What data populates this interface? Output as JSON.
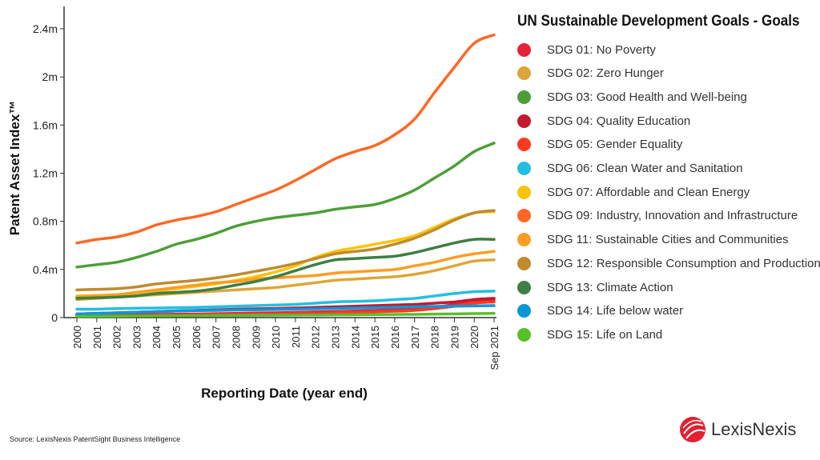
{
  "chart_data": {
    "type": "line",
    "xlabel": "Reporting Date (year end)",
    "ylabel": "Patent Asset Index™",
    "ylim": [
      0,
      2400000
    ],
    "yticks": [
      "0",
      "0.4m",
      "0.8m",
      "1.2m",
      "1.6m",
      "2m",
      "2.4m"
    ],
    "x": [
      "2000",
      "2001",
      "2002",
      "2003",
      "2004",
      "2005",
      "2006",
      "2007",
      "2008",
      "2009",
      "2010",
      "2011",
      "2012",
      "2013",
      "2014",
      "2015",
      "2016",
      "2017",
      "2018",
      "2019",
      "2020",
      "Sep 2021"
    ],
    "legend_title": "UN Sustainable Development Goals - Goals",
    "legend_position": "right",
    "grid": false,
    "series": [
      {
        "name": "SDG 01: No Poverty",
        "color": "#e5243b",
        "values": [
          0.02,
          0.02,
          0.022,
          0.024,
          0.026,
          0.028,
          0.03,
          0.032,
          0.035,
          0.038,
          0.04,
          0.043,
          0.047,
          0.05,
          0.055,
          0.06,
          0.065,
          0.07,
          0.085,
          0.11,
          0.14,
          0.15
        ]
      },
      {
        "name": "SDG 02: Zero Hunger",
        "color": "#dda63a",
        "values": [
          0.15,
          0.16,
          0.17,
          0.18,
          0.19,
          0.2,
          0.21,
          0.22,
          0.23,
          0.24,
          0.25,
          0.27,
          0.29,
          0.31,
          0.32,
          0.33,
          0.34,
          0.36,
          0.39,
          0.43,
          0.47,
          0.48
        ]
      },
      {
        "name": "SDG 03: Good Health and Well-being",
        "color": "#4c9f38",
        "values": [
          0.42,
          0.44,
          0.46,
          0.5,
          0.55,
          0.61,
          0.65,
          0.7,
          0.76,
          0.8,
          0.83,
          0.85,
          0.87,
          0.9,
          0.92,
          0.94,
          0.99,
          1.06,
          1.16,
          1.26,
          1.38,
          1.45
        ]
      },
      {
        "name": "SDG 04: Quality Education",
        "color": "#c5192d",
        "values": [
          0.03,
          0.035,
          0.04,
          0.045,
          0.05,
          0.055,
          0.06,
          0.065,
          0.07,
          0.073,
          0.076,
          0.08,
          0.085,
          0.09,
          0.095,
          0.1,
          0.105,
          0.11,
          0.12,
          0.13,
          0.15,
          0.16
        ]
      },
      {
        "name": "SDG 05: Gender Equality",
        "color": "#ff3a21",
        "values": [
          0.01,
          0.012,
          0.014,
          0.016,
          0.018,
          0.02,
          0.022,
          0.024,
          0.026,
          0.028,
          0.03,
          0.033,
          0.036,
          0.04,
          0.044,
          0.048,
          0.053,
          0.06,
          0.075,
          0.095,
          0.12,
          0.13
        ]
      },
      {
        "name": "SDG 06: Clean Water and Sanitation",
        "color": "#26bde2",
        "values": [
          0.07,
          0.07,
          0.075,
          0.078,
          0.08,
          0.082,
          0.085,
          0.09,
          0.095,
          0.1,
          0.105,
          0.11,
          0.12,
          0.13,
          0.135,
          0.14,
          0.15,
          0.16,
          0.18,
          0.2,
          0.215,
          0.22
        ]
      },
      {
        "name": "SDG 07: Affordable and Clean Energy",
        "color": "#fcc30b",
        "values": [
          0.18,
          0.185,
          0.19,
          0.2,
          0.22,
          0.24,
          0.26,
          0.28,
          0.31,
          0.34,
          0.38,
          0.43,
          0.5,
          0.55,
          0.58,
          0.61,
          0.64,
          0.68,
          0.75,
          0.82,
          0.87,
          0.88
        ]
      },
      {
        "name": "SDG 09: Industry, Innovation and Infrastructure",
        "color": "#fd6925",
        "values": [
          0.62,
          0.65,
          0.67,
          0.71,
          0.77,
          0.81,
          0.84,
          0.88,
          0.94,
          1.0,
          1.06,
          1.14,
          1.23,
          1.32,
          1.38,
          1.43,
          1.52,
          1.65,
          1.87,
          2.08,
          2.28,
          2.35
        ]
      },
      {
        "name": "SDG 11: Sustainable Cities and Communities",
        "color": "#fd9d24",
        "values": [
          0.17,
          0.18,
          0.19,
          0.21,
          0.23,
          0.25,
          0.27,
          0.29,
          0.3,
          0.32,
          0.33,
          0.34,
          0.35,
          0.37,
          0.38,
          0.39,
          0.4,
          0.43,
          0.46,
          0.5,
          0.53,
          0.55
        ]
      },
      {
        "name": "SDG 12: Responsible Consumption and Production",
        "color": "#bf8b2e",
        "values": [
          0.23,
          0.235,
          0.24,
          0.255,
          0.28,
          0.295,
          0.31,
          0.33,
          0.355,
          0.385,
          0.415,
          0.45,
          0.49,
          0.53,
          0.55,
          0.57,
          0.61,
          0.66,
          0.73,
          0.81,
          0.87,
          0.89
        ]
      },
      {
        "name": "SDG 13: Climate Action",
        "color": "#3f7e44",
        "values": [
          0.16,
          0.165,
          0.17,
          0.18,
          0.2,
          0.21,
          0.22,
          0.24,
          0.27,
          0.3,
          0.34,
          0.39,
          0.44,
          0.48,
          0.49,
          0.5,
          0.51,
          0.54,
          0.58,
          0.62,
          0.65,
          0.65
        ]
      },
      {
        "name": "SDG 14: Life below water",
        "color": "#0a97d9",
        "values": [
          0.03,
          0.035,
          0.04,
          0.045,
          0.05,
          0.055,
          0.058,
          0.06,
          0.063,
          0.065,
          0.067,
          0.07,
          0.073,
          0.076,
          0.08,
          0.083,
          0.086,
          0.09,
          0.093,
          0.095,
          0.097,
          0.1
        ]
      },
      {
        "name": "SDG 15: Life on Land",
        "color": "#56c02b",
        "values": [
          0.01,
          0.011,
          0.012,
          0.013,
          0.014,
          0.015,
          0.016,
          0.017,
          0.018,
          0.019,
          0.02,
          0.021,
          0.022,
          0.023,
          0.024,
          0.025,
          0.026,
          0.027,
          0.029,
          0.031,
          0.033,
          0.035
        ]
      }
    ],
    "value_unit_note": "values in millions"
  },
  "footer": {
    "source": "Source: LexisNexis PatentSight Business Intelligence",
    "logo": "LexisNexis"
  },
  "colors": {
    "logo_red": "#e4202e"
  }
}
